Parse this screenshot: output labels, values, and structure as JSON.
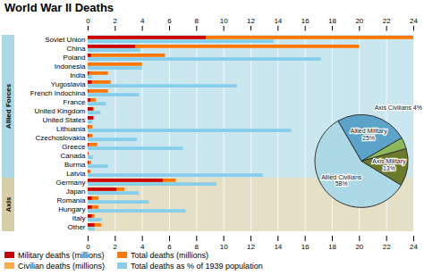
{
  "chart_data": [
    {
      "type": "bar",
      "title": "World War II Deaths",
      "orientation": "horizontal",
      "categories": [
        "Soviet Union",
        "China",
        "Poland",
        "Indonesia",
        "India",
        "Yugoslavia",
        "French Indochina",
        "France",
        "United Kingdom",
        "United States",
        "Lithuania",
        "Czechoslovakia",
        "Greece",
        "Canada",
        "Burma",
        "Latvia",
        "Germany",
        "Japan",
        "Romania",
        "Hungary",
        "Italy",
        "Other"
      ],
      "groups": [
        {
          "name": "Allied Forces",
          "color": "#add8e6"
        },
        {
          "name": "Axis",
          "color": "#d4cfa8"
        }
      ],
      "category_groups": [
        "Allied Forces",
        "Allied Forces",
        "Allied Forces",
        "Allied Forces",
        "Allied Forces",
        "Allied Forces",
        "Allied Forces",
        "Allied Forces",
        "Allied Forces",
        "Allied Forces",
        "Allied Forces",
        "Allied Forces",
        "Allied Forces",
        "Allied Forces",
        "Allied Forces",
        "Allied Forces",
        "Axis",
        "Axis",
        "Axis",
        "Axis",
        "Axis",
        "Axis"
      ],
      "series": [
        {
          "name": "Military deaths (millions)",
          "color": "#cc0000",
          "values": [
            8.7,
            3.5,
            0.24,
            0.0,
            0.09,
            0.3,
            0.05,
            0.21,
            0.38,
            0.42,
            0.03,
            0.07,
            0.07,
            0.04,
            0.06,
            0.03,
            5.53,
            2.12,
            0.3,
            0.3,
            0.31,
            0.5
          ]
        },
        {
          "name": "Total deaths (millions)",
          "color": "#ff7700",
          "values": [
            24.0,
            20.0,
            5.7,
            4.0,
            1.5,
            1.7,
            1.5,
            0.6,
            0.45,
            0.42,
            0.35,
            0.35,
            0.7,
            0.04,
            0.25,
            0.2,
            6.5,
            2.7,
            0.8,
            0.8,
            0.5,
            1.0
          ]
        },
        {
          "name": "Civilian deaths (millions)",
          "color": "#ffaa44",
          "values": [
            null,
            null,
            null,
            null,
            null,
            null,
            null,
            null,
            null,
            null,
            null,
            null,
            null,
            null,
            null,
            null,
            null,
            null,
            null,
            null,
            null,
            null
          ]
        },
        {
          "name": "Total deaths as % of 1939 population",
          "color": "#87ceeb",
          "values": [
            13.7,
            3.86,
            17.2,
            4.0,
            0.3,
            11.0,
            3.8,
            1.35,
            0.94,
            0.32,
            15.0,
            3.63,
            7.02,
            0.4,
            1.5,
            12.9,
            9.5,
            3.78,
            4.5,
            7.22,
            1.03,
            0.5
          ]
        }
      ],
      "xlim": [
        0,
        24
      ],
      "xticks": [
        0,
        2,
        4,
        6,
        8,
        10,
        12,
        14,
        16,
        18,
        20,
        22,
        24
      ],
      "grid": true
    },
    {
      "type": "pie",
      "categories": [
        "Allied Civilians\n58%",
        "Axis Military\n13%",
        "Axis Civilians 4%",
        "Allied Military\n25%"
      ],
      "values": [
        58,
        13,
        4,
        25
      ],
      "colors": [
        "#add8e6",
        "#6b7a2a",
        "#8db85a",
        "#5ba3c9"
      ]
    }
  ]
}
